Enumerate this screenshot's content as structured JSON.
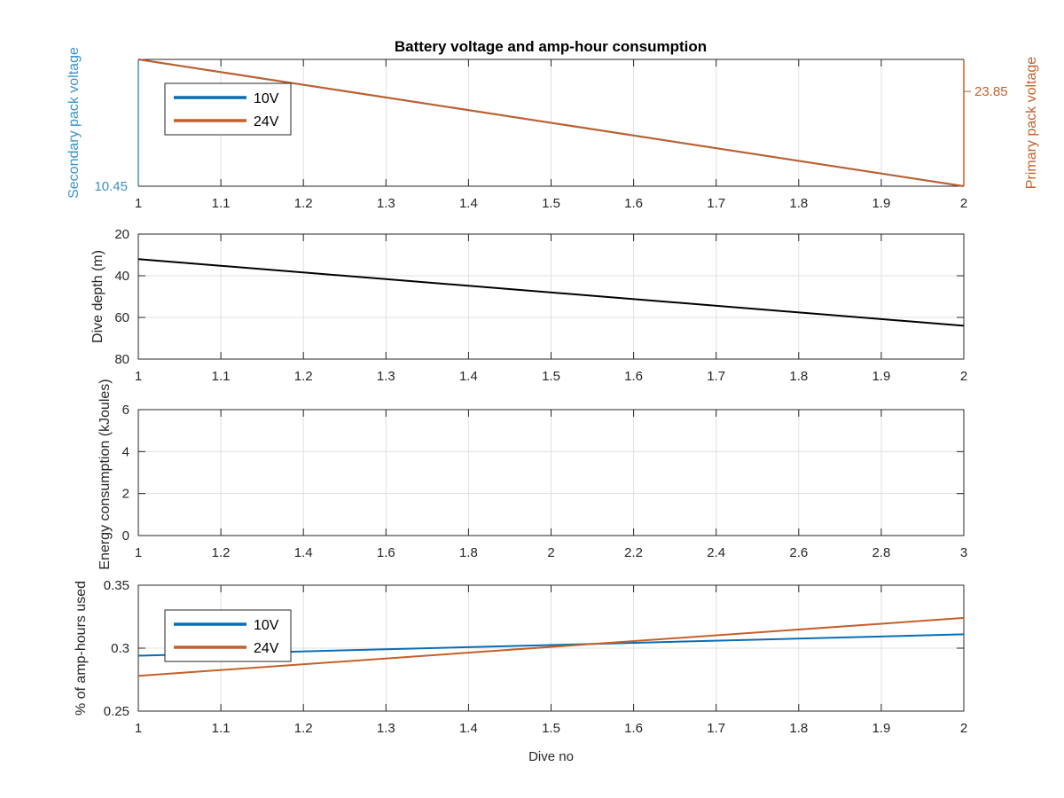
{
  "figure": {
    "title": "Battery voltage and amp-hour consumption"
  },
  "colors": {
    "series_10v": "#0a6db4",
    "series_24v": "#c4602a",
    "depth_line": "#000000",
    "left_axis_label_color": "#3a93c8",
    "right_axis_label_color": "#c4602a",
    "grid": "#e0e0e0",
    "axis": "#262626"
  },
  "chart_data": [
    {
      "id": "voltage",
      "type": "line",
      "xlim": [
        1,
        2
      ],
      "x_ticks": [
        "1",
        "1.1",
        "1.2",
        "1.3",
        "1.4",
        "1.5",
        "1.6",
        "1.7",
        "1.8",
        "1.9",
        "2"
      ],
      "ylabel_left": "Secondary pack voltage",
      "ylabel_right": "Primary pack voltage",
      "left_tick_label": "10.45",
      "right_tick_label": "23.85",
      "grid": true,
      "legend": {
        "placement": "top-left",
        "entries": [
          "10V",
          "24V"
        ]
      },
      "series": [
        {
          "name": "10V",
          "axis": "left",
          "x": [
            1,
            2
          ],
          "y": [
            10.46,
            10.45
          ]
        },
        {
          "name": "24V",
          "axis": "right",
          "x": [
            1,
            2
          ],
          "y": [
            23.87,
            23.82
          ]
        }
      ],
      "left_ylim": [
        10.45,
        10.46
      ],
      "right_ylim": [
        23.82,
        23.87
      ]
    },
    {
      "id": "depth",
      "type": "line",
      "xlim": [
        1,
        2
      ],
      "x_ticks": [
        "1",
        "1.1",
        "1.2",
        "1.3",
        "1.4",
        "1.5",
        "1.6",
        "1.7",
        "1.8",
        "1.9",
        "2"
      ],
      "ylim": [
        20,
        80
      ],
      "y_reversed": true,
      "y_ticks": [
        20,
        40,
        60,
        80
      ],
      "ylabel": "Dive depth (m)",
      "grid": true,
      "series": [
        {
          "name": "",
          "x": [
            1,
            2
          ],
          "y": [
            32,
            64
          ]
        }
      ]
    },
    {
      "id": "energy",
      "type": "line",
      "xlim": [
        1,
        3
      ],
      "x_ticks": [
        "1",
        "1.2",
        "1.4",
        "1.6",
        "1.8",
        "2",
        "2.2",
        "2.4",
        "2.6",
        "2.8",
        "3"
      ],
      "ylim": [
        0,
        6
      ],
      "y_ticks": [
        0,
        2,
        4,
        6
      ],
      "ylabel": "Energy consumption (kJoules)",
      "grid": true,
      "series": []
    },
    {
      "id": "amphours",
      "type": "line",
      "xlim": [
        1,
        2
      ],
      "x_ticks": [
        "1",
        "1.1",
        "1.2",
        "1.3",
        "1.4",
        "1.5",
        "1.6",
        "1.7",
        "1.8",
        "1.9",
        "2"
      ],
      "ylim": [
        0.25,
        0.35
      ],
      "y_ticks": [
        "0.25",
        "0.3",
        "0.35"
      ],
      "ylabel": "% of amp-hours used",
      "xlabel": "Dive no",
      "grid": true,
      "legend": {
        "placement": "top-left",
        "entries": [
          "10V",
          "24V"
        ]
      },
      "series": [
        {
          "name": "10V",
          "x": [
            1,
            2
          ],
          "y": [
            0.294,
            0.311
          ]
        },
        {
          "name": "24V",
          "x": [
            1,
            2
          ],
          "y": [
            0.278,
            0.324
          ]
        }
      ]
    }
  ]
}
